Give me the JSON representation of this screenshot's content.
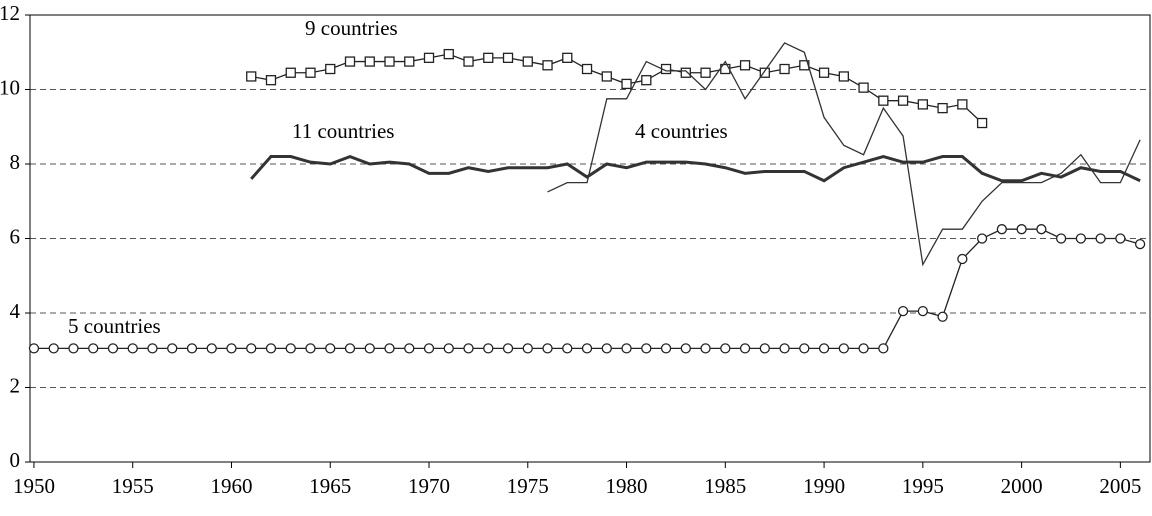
{
  "chart_data": {
    "type": "line",
    "xlim": [
      1949.8,
      2006.5
    ],
    "ylim": [
      0,
      12
    ],
    "xticks": [
      1950,
      1955,
      1960,
      1965,
      1970,
      1975,
      1980,
      1985,
      1990,
      1995,
      2000,
      2005
    ],
    "yticks": [
      0,
      2,
      4,
      6,
      8,
      10,
      12
    ],
    "grid": true,
    "series": [
      {
        "name": "9 countries",
        "color": "#222222",
        "marker": "square",
        "width": 1.3,
        "x": [
          1961,
          1962,
          1963,
          1964,
          1965,
          1966,
          1967,
          1968,
          1969,
          1970,
          1971,
          1972,
          1973,
          1974,
          1975,
          1976,
          1977,
          1978,
          1979,
          1980,
          1981,
          1982,
          1983,
          1984,
          1985,
          1986,
          1987,
          1988,
          1989,
          1990,
          1991,
          1992,
          1993,
          1994,
          1995,
          1996,
          1997,
          1998
        ],
        "values": [
          10.35,
          10.25,
          10.45,
          10.45,
          10.55,
          10.75,
          10.75,
          10.75,
          10.75,
          10.85,
          10.95,
          10.75,
          10.85,
          10.85,
          10.75,
          10.65,
          10.85,
          10.55,
          10.35,
          10.15,
          10.25,
          10.55,
          10.45,
          10.45,
          10.55,
          10.65,
          10.45,
          10.55,
          10.65,
          10.45,
          10.35,
          10.05,
          9.7,
          9.7,
          9.6,
          9.5,
          9.6,
          9.1
        ]
      },
      {
        "name": "11 countries",
        "color": "#333333",
        "marker": null,
        "width": 3,
        "x": [
          1961,
          1962,
          1963,
          1964,
          1965,
          1966,
          1967,
          1968,
          1969,
          1970,
          1971,
          1972,
          1973,
          1974,
          1975,
          1976,
          1977,
          1978,
          1979,
          1980,
          1981,
          1982,
          1983,
          1984,
          1985,
          1986,
          1987,
          1988,
          1989,
          1990,
          1991,
          1992,
          1993,
          1994,
          1995,
          1996,
          1997,
          1998,
          1999,
          2000,
          2001,
          2002,
          2003,
          2004,
          2005,
          2006
        ],
        "values": [
          7.6,
          8.2,
          8.2,
          8.05,
          8.0,
          8.2,
          8.0,
          8.05,
          8.0,
          7.75,
          7.75,
          7.9,
          7.8,
          7.9,
          7.9,
          7.9,
          8.0,
          7.65,
          8.0,
          7.9,
          8.05,
          8.05,
          8.05,
          8.0,
          7.9,
          7.75,
          7.8,
          7.8,
          7.8,
          7.55,
          7.9,
          8.05,
          8.2,
          8.05,
          8.05,
          8.2,
          8.2,
          7.75,
          7.55,
          7.55,
          7.75,
          7.65,
          7.9,
          7.8,
          7.8,
          7.55
        ]
      },
      {
        "name": "4 countries",
        "color": "#333333",
        "marker": null,
        "width": 1.3,
        "x": [
          1976,
          1977,
          1978,
          1979,
          1980,
          1981,
          1982,
          1983,
          1984,
          1985,
          1986,
          1987,
          1988,
          1989,
          1990,
          1991,
          1992,
          1993,
          1994,
          1995,
          1996,
          1997,
          1998,
          1999,
          2000,
          2001,
          2002,
          2003,
          2004,
          2005,
          2006
        ],
        "values": [
          7.25,
          7.5,
          7.5,
          9.75,
          9.75,
          10.75,
          10.5,
          10.5,
          10.0,
          10.75,
          9.75,
          10.5,
          11.25,
          11.0,
          9.25,
          8.5,
          8.25,
          9.5,
          8.75,
          5.3,
          6.25,
          6.25,
          7.0,
          7.5,
          7.5,
          7.5,
          7.75,
          8.25,
          7.5,
          7.5,
          8.65
        ]
      },
      {
        "name": "5 countries",
        "color": "#222222",
        "marker": "circle",
        "width": 1.3,
        "x": [
          1950,
          1951,
          1952,
          1953,
          1954,
          1955,
          1956,
          1957,
          1958,
          1959,
          1960,
          1961,
          1962,
          1963,
          1964,
          1965,
          1966,
          1967,
          1968,
          1969,
          1970,
          1971,
          1972,
          1973,
          1974,
          1975,
          1976,
          1977,
          1978,
          1979,
          1980,
          1981,
          1982,
          1983,
          1984,
          1985,
          1986,
          1987,
          1988,
          1989,
          1990,
          1991,
          1992,
          1993,
          1994,
          1995,
          1996,
          1997,
          1998,
          1999,
          2000,
          2001,
          2002,
          2003,
          2004,
          2005,
          2006
        ],
        "values": [
          3.05,
          3.05,
          3.05,
          3.05,
          3.05,
          3.05,
          3.05,
          3.05,
          3.05,
          3.05,
          3.05,
          3.05,
          3.05,
          3.05,
          3.05,
          3.05,
          3.05,
          3.05,
          3.05,
          3.05,
          3.05,
          3.05,
          3.05,
          3.05,
          3.05,
          3.05,
          3.05,
          3.05,
          3.05,
          3.05,
          3.05,
          3.05,
          3.05,
          3.05,
          3.05,
          3.05,
          3.05,
          3.05,
          3.05,
          3.05,
          3.05,
          3.05,
          3.05,
          3.05,
          4.05,
          4.05,
          3.9,
          5.45,
          6.0,
          6.25,
          6.25,
          6.25,
          6.0,
          6.0,
          6.0,
          6.0,
          5.85
        ]
      }
    ]
  }
}
